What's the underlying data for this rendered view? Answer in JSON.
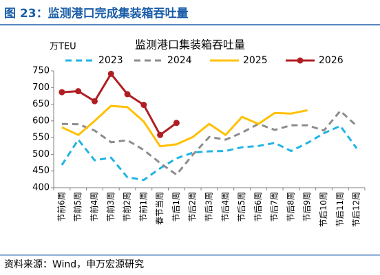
{
  "header": {
    "title": "图 23：监测港口完成集装箱吞吐量"
  },
  "chart_data": {
    "type": "line",
    "title": "监测港口集装箱吞吐量",
    "y_label": "万TEU",
    "categories": [
      "节前6周",
      "节前5周",
      "节前4周",
      "节前3周",
      "节前2周",
      "节前1周",
      "春节当周",
      "节后1周",
      "节后2周",
      "节后3周",
      "节后4周",
      "节后5周",
      "节后6周",
      "节后7周",
      "节后8周",
      "节后9周",
      "节后10周",
      "节后11周",
      "节后12周"
    ],
    "series": [
      {
        "name": "2023",
        "color": "#1fb4e6",
        "dash": true,
        "values": [
          468,
          544,
          482,
          490,
          431,
          423,
          458,
          488,
          505,
          509,
          510,
          521,
          525,
          534,
          510,
          534,
          563,
          585,
          518
        ]
      },
      {
        "name": "2024",
        "color": "#8c8c8c",
        "dash": true,
        "values": [
          591,
          590,
          571,
          536,
          542,
          513,
          474,
          439,
          499,
          552,
          544,
          565,
          591,
          573,
          587,
          587,
          571,
          630,
          585
        ]
      },
      {
        "name": "2025",
        "color": "#ffc000",
        "dash": false,
        "values": [
          581,
          558,
          600,
          645,
          641,
          598,
          524,
          530,
          552,
          591,
          558,
          612,
          591,
          624,
          622,
          632,
          null,
          null,
          null
        ]
      },
      {
        "name": "2026",
        "color": "#b01e23",
        "dash": false,
        "markers": true,
        "values": [
          686,
          689,
          659,
          741,
          680,
          648,
          558,
          594,
          null,
          null,
          null,
          null,
          null,
          null,
          null,
          null,
          null,
          null,
          null
        ]
      }
    ],
    "ylim": [
      400,
      750
    ],
    "yticks": [
      400,
      450,
      500,
      550,
      600,
      650,
      700,
      750
    ],
    "grid": false
  },
  "footer": {
    "source": "资料来源：Wind，申万宏源研究"
  }
}
